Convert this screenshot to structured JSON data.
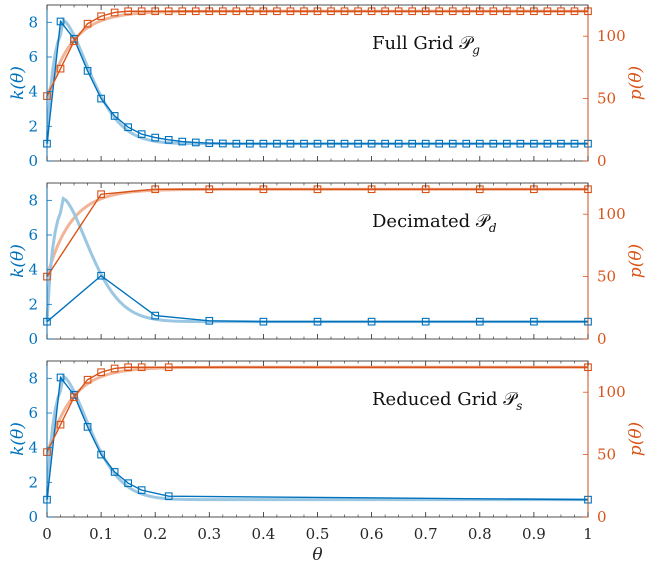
{
  "colors": {
    "k": "#0072BD",
    "p": "#D95319",
    "k_light": "#9CC7E2",
    "p_light": "#F1B496",
    "axis": "#262626"
  },
  "chart_data": [
    {
      "type": "line",
      "annotation": "Full Grid 𝒫",
      "annotation_sub": "g",
      "xlim": [
        0,
        1
      ],
      "ylim_left": [
        0,
        9
      ],
      "ylim_right": [
        0,
        125
      ],
      "left_ylabel": "k(θ)",
      "right_ylabel": "p(θ)",
      "left_yticks": [
        "0",
        "2",
        "4",
        "6",
        "8"
      ],
      "right_yticks": [
        "0",
        "50",
        "100"
      ],
      "show_xticklabels": false,
      "series": [
        {
          "key": "k",
          "x": [
            0,
            0.025,
            0.05,
            0.075,
            0.1,
            0.125,
            0.15,
            0.175,
            0.2,
            0.225,
            0.25,
            0.275,
            0.3,
            0.325,
            0.35,
            0.375,
            0.4,
            0.425,
            0.45,
            0.475,
            0.5,
            0.525,
            0.55,
            0.575,
            0.6,
            0.625,
            0.65,
            0.675,
            0.7,
            0.725,
            0.75,
            0.775,
            0.8,
            0.825,
            0.85,
            0.875,
            0.9,
            0.925,
            0.95,
            0.975,
            1
          ],
          "y": [
            1,
            8.05,
            7.05,
            5.2,
            3.6,
            2.6,
            1.95,
            1.55,
            1.35,
            1.22,
            1.12,
            1.07,
            1.03,
            1.01,
            1,
            1,
            1,
            1,
            1,
            1,
            1,
            1,
            1,
            1,
            1,
            1,
            1,
            1,
            1,
            1,
            1,
            1,
            1,
            1,
            1,
            1,
            1,
            1,
            1,
            1,
            1
          ]
        },
        {
          "key": "p",
          "x": [
            0,
            0.025,
            0.05,
            0.075,
            0.1,
            0.125,
            0.15,
            0.175,
            0.2,
            0.225,
            0.25,
            0.275,
            0.3,
            0.325,
            0.35,
            0.375,
            0.4,
            0.425,
            0.45,
            0.475,
            0.5,
            0.525,
            0.55,
            0.575,
            0.6,
            0.625,
            0.65,
            0.675,
            0.7,
            0.725,
            0.75,
            0.775,
            0.8,
            0.825,
            0.85,
            0.875,
            0.9,
            0.925,
            0.95,
            0.975,
            1
          ],
          "y": [
            52,
            74,
            96,
            110,
            116,
            119,
            120,
            120,
            120,
            120,
            120,
            120,
            120,
            120,
            120,
            120,
            120,
            120,
            120,
            120,
            120,
            120,
            120,
            120,
            120,
            120,
            120,
            120,
            120,
            120,
            120,
            120,
            120,
            120,
            120,
            120,
            120,
            120,
            120,
            120,
            120
          ]
        }
      ]
    },
    {
      "type": "line",
      "annotation": "Decimated 𝒫",
      "annotation_sub": "d",
      "xlim": [
        0,
        1
      ],
      "ylim_left": [
        0,
        9
      ],
      "ylim_right": [
        0,
        125
      ],
      "left_ylabel": "k(θ)",
      "right_ylabel": "p(θ)",
      "left_yticks": [
        "0",
        "2",
        "4",
        "6",
        "8"
      ],
      "right_yticks": [
        "0",
        "50",
        "100"
      ],
      "show_xticklabels": false,
      "series": [
        {
          "key": "k",
          "x": [
            0,
            0.1,
            0.2,
            0.3,
            0.4,
            0.5,
            0.6,
            0.7,
            0.8,
            0.9,
            1
          ],
          "y": [
            1,
            3.65,
            1.35,
            1.05,
            1,
            1,
            1,
            1,
            1,
            1,
            1
          ]
        },
        {
          "key": "p",
          "x": [
            0,
            0.1,
            0.2,
            0.3,
            0.4,
            0.5,
            0.6,
            0.7,
            0.8,
            0.9,
            1
          ],
          "y": [
            50,
            116,
            120,
            120,
            120,
            120,
            120,
            120,
            120,
            120,
            120
          ]
        }
      ]
    },
    {
      "type": "line",
      "annotation": "Reduced Grid 𝒫",
      "annotation_sub": "s",
      "xlim": [
        0,
        1
      ],
      "ylim_left": [
        0,
        9
      ],
      "ylim_right": [
        0,
        125
      ],
      "left_ylabel": "k(θ)",
      "right_ylabel": "p(θ)",
      "left_yticks": [
        "0",
        "2",
        "4",
        "6",
        "8"
      ],
      "right_yticks": [
        "0",
        "50",
        "100"
      ],
      "xlabel": "θ",
      "xticks": [
        "0",
        "0.1",
        "0.2",
        "0.3",
        "0.4",
        "0.5",
        "0.6",
        "0.7",
        "0.8",
        "0.9",
        "1"
      ],
      "show_xticklabels": true,
      "series": [
        {
          "key": "k",
          "x": [
            0,
            0.025,
            0.05,
            0.075,
            0.1,
            0.125,
            0.15,
            0.175,
            0.225,
            1
          ],
          "y": [
            1,
            8.05,
            7.05,
            5.2,
            3.6,
            2.6,
            1.95,
            1.55,
            1.2,
            1
          ]
        },
        {
          "key": "p",
          "x": [
            0,
            0.025,
            0.05,
            0.075,
            0.1,
            0.125,
            0.15,
            0.175,
            0.225,
            1
          ],
          "y": [
            52,
            74,
            96,
            110,
            116,
            119,
            120,
            120,
            120,
            120
          ]
        }
      ]
    }
  ]
}
